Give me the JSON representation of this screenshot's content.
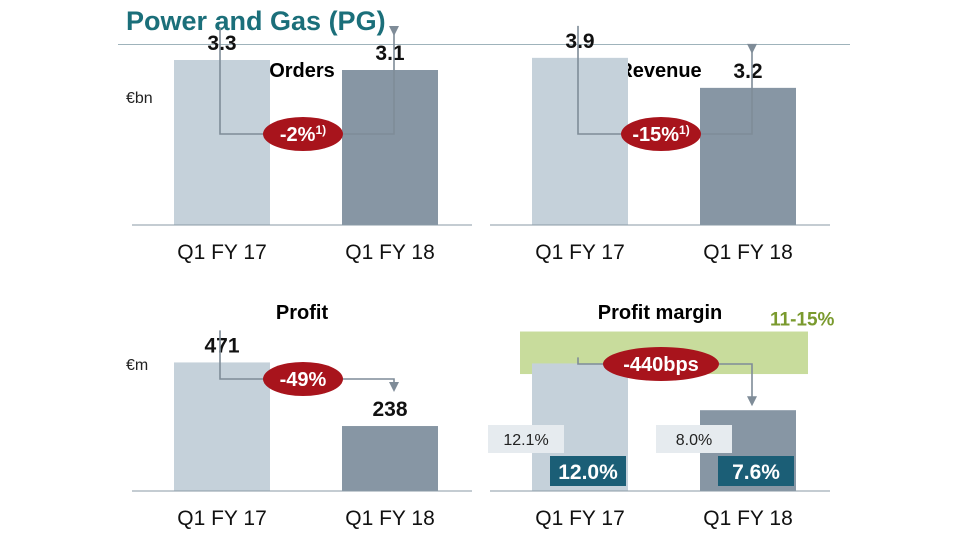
{
  "page": {
    "title": "Power and Gas (PG)"
  },
  "colors": {
    "title": "#1b6f7a",
    "bar_prior": "#c5d1da",
    "bar_current": "#8796a4",
    "delta_badge": "#a8141c",
    "arrow": "#7f8c98",
    "target_band": "#c8dc9c",
    "target_text": "#7a9a2e",
    "label_dark": "#1b5e76",
    "label_light": "#e6ebef",
    "axis": "#8a9aa6"
  },
  "chart_data": [
    {
      "type": "bar",
      "title": "Orders",
      "unit": "€bn",
      "categories": [
        "Q1 FY 17",
        "Q1 FY 18"
      ],
      "values": [
        3.3,
        3.1
      ],
      "value_labels": [
        "3.3",
        "3.1"
      ],
      "change_label": "-2%",
      "change_footnote": "1)",
      "ylim": [
        0,
        4.2
      ]
    },
    {
      "type": "bar",
      "title": "Revenue",
      "unit": "",
      "categories": [
        "Q1 FY 17",
        "Q1 FY 18"
      ],
      "values": [
        3.9,
        3.2
      ],
      "value_labels": [
        "3.9",
        "3.2"
      ],
      "change_label": "-15%",
      "change_footnote": "1)",
      "ylim": [
        0,
        4.9
      ]
    },
    {
      "type": "bar",
      "title": "Profit",
      "unit": "€m",
      "categories": [
        "Q1 FY 17",
        "Q1 FY 18"
      ],
      "values": [
        471,
        238
      ],
      "value_labels": [
        "471",
        "238"
      ],
      "change_label": "-49%",
      "change_footnote": "",
      "ylim": [
        0,
        740
      ]
    },
    {
      "type": "bar",
      "title": "Profit margin",
      "unit": "",
      "categories": [
        "Q1 FY 17",
        "Q1 FY 18"
      ],
      "values": [
        12.0,
        7.6
      ],
      "value_labels": [
        "12.0%",
        "7.6%"
      ],
      "secondary_labels": [
        "12.1%",
        "8.0%"
      ],
      "change_label": "-440bps",
      "change_footnote": "",
      "target_range": [
        11,
        15
      ],
      "target_label": "11-15%",
      "ylim": [
        0,
        19
      ]
    }
  ]
}
